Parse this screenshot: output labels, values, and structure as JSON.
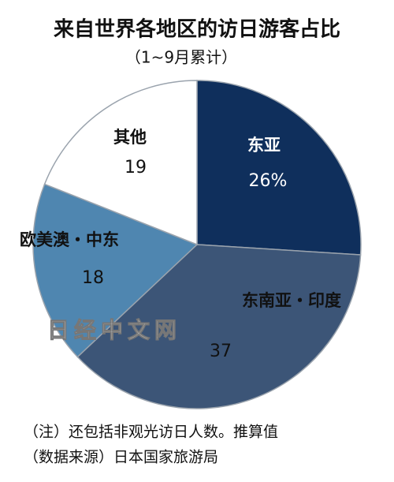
{
  "chart_data": {
    "type": "pie",
    "title": "来自世界各地区的访日游客占比",
    "subtitle": "（1~9月累计）",
    "categories": [
      "东亚",
      "东南亚・印度",
      "欧美澳・中东",
      "其他"
    ],
    "values": [
      26,
      37,
      18,
      19
    ],
    "value_labels": [
      "26%",
      "37",
      "18",
      "19"
    ],
    "colors": [
      "#0f2f5c",
      "#3c5577",
      "#4f86b0",
      "#ffffff"
    ],
    "label_colors": [
      "#ffffff",
      "#111111",
      "#111111",
      "#111111"
    ],
    "watermark": "日经中文网",
    "notes": [
      "（注）还包括非观光访日人数。推算值",
      "（数据来源）日本国家旅游局"
    ]
  }
}
